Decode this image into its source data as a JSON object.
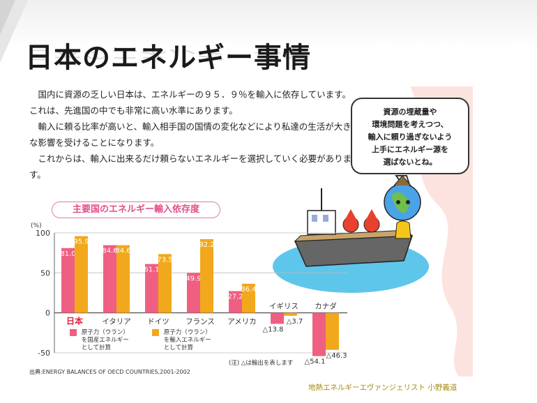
{
  "slide": {
    "title": "日本のエネルギー事情",
    "paragraphs": [
      "　国内に資源の乏しい日本は、エネルギーの９５．９％を輸入に依存しています。これは、先進国の中でも非常に高い水準にあります。",
      "　輸入に頼る比率が高いと、輸入相手国の国情の変化などにより私達の生活が大きな影響を受けることになります。",
      "　これからは、輸入に出来るだけ頼らないエネルギーを選択していく必要があります。"
    ],
    "bubble_lines": [
      "資源の埋蔵量や",
      "環境問題を考えつつ、",
      "輸入に頼り過ぎないよう",
      "上手にエネルギー源を",
      "選ばないとね。"
    ],
    "footer": "地熱エネルギーエヴァンジェリスト 小野義道",
    "source": "出典:ENERGY BALANCES OF OECD COUNTRIES,2001-2002"
  },
  "chart_data": {
    "type": "bar",
    "title": "主要国のエネルギー輸入依存度",
    "ylabel": "(%)",
    "ylim": [
      -50,
      100
    ],
    "yticks": [
      100,
      50,
      0,
      -50
    ],
    "categories": [
      "日本",
      "イタリア",
      "ドイツ",
      "フランス",
      "アメリカ",
      "イギリス",
      "カナダ"
    ],
    "series": [
      {
        "name": "原子力（ウラン）を国産エネルギーとして計算",
        "color": "#ef5f82",
        "values": [
          81.0,
          84.6,
          61.1,
          49.9,
          27.2,
          -13.8,
          -54.1
        ]
      },
      {
        "name": "原子力（ウラン）を輸入エネルギーとして計算",
        "color": "#f2a81c",
        "values": [
          95.9,
          84.6,
          73.5,
          92.2,
          36.4,
          -3.7,
          -46.3
        ]
      }
    ],
    "value_labels": [
      [
        "81.0",
        "84.6",
        "61.1",
        "49.9",
        "27.2",
        "△13.8",
        "△54.1"
      ],
      [
        "95.9",
        "84.6",
        "73.5",
        "92.2",
        "36.4",
        "△3.7",
        "△46.3"
      ]
    ],
    "highlight_color": "#e0203a",
    "note": "(注) △は輸出を表します",
    "legend_lines": [
      [
        "原子力（ウラン）",
        "を国産エネルギー",
        "として計算"
      ],
      [
        "原子力（ウラン）",
        "を輸入エネルギー",
        "として計算"
      ]
    ]
  }
}
